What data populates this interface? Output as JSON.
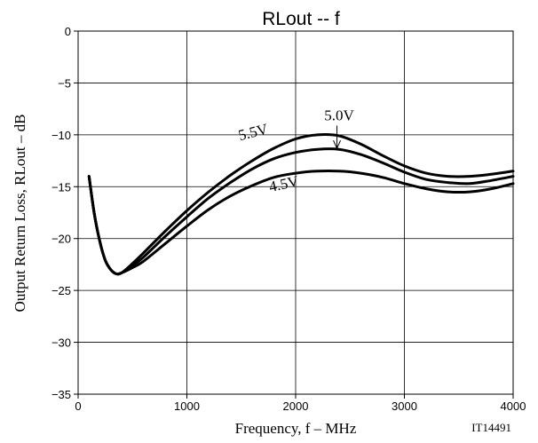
{
  "chart_data": {
    "type": "line",
    "title": "RLout  --  f",
    "xlabel": "Frequency, f  –  MHz",
    "ylabel": "Output Return Loss, RLout   –  dB",
    "xlim": [
      0,
      4000
    ],
    "ylim": [
      -35,
      0
    ],
    "xticks": [
      0,
      1000,
      2000,
      3000,
      4000
    ],
    "xtick_labels": [
      "0",
      "1000",
      "2000",
      "3000",
      "4000"
    ],
    "yticks": [
      0,
      -5,
      -10,
      -15,
      -20,
      -25,
      -30,
      -35
    ],
    "ytick_labels": [
      "0",
      "−5",
      "−10",
      "−15",
      "−20",
      "−25",
      "−30",
      "−35"
    ],
    "grid": true,
    "figure_id": "IT14491",
    "series": [
      {
        "name": "5.5V",
        "x": [
          100,
          150,
          200,
          250,
          300,
          350,
          400,
          500,
          600,
          800,
          1000,
          1200,
          1400,
          1600,
          1800,
          2000,
          2200,
          2400,
          2600,
          2800,
          3000,
          3200,
          3400,
          3600,
          3800,
          4000
        ],
        "y": [
          -14.0,
          -17.7,
          -20.3,
          -22.1,
          -23.0,
          -23.4,
          -23.3,
          -22.4,
          -21.4,
          -19.3,
          -17.3,
          -15.5,
          -13.9,
          -12.5,
          -11.3,
          -10.4,
          -10.0,
          -10.1,
          -10.9,
          -12.0,
          -13.0,
          -13.7,
          -14.0,
          -14.0,
          -13.8,
          -13.5
        ]
      },
      {
        "name": "5.0V",
        "x": [
          100,
          150,
          200,
          250,
          300,
          350,
          400,
          500,
          600,
          800,
          1000,
          1200,
          1400,
          1600,
          1800,
          2000,
          2200,
          2400,
          2600,
          2800,
          3000,
          3200,
          3400,
          3600,
          3800,
          4000
        ],
        "y": [
          -14.0,
          -17.7,
          -20.3,
          -22.1,
          -23.0,
          -23.4,
          -23.3,
          -22.6,
          -21.8,
          -19.8,
          -17.9,
          -16.1,
          -14.6,
          -13.3,
          -12.3,
          -11.7,
          -11.4,
          -11.4,
          -11.9,
          -12.7,
          -13.6,
          -14.3,
          -14.6,
          -14.7,
          -14.4,
          -14.0
        ]
      },
      {
        "name": "4.5V",
        "x": [
          100,
          150,
          200,
          250,
          300,
          350,
          400,
          500,
          600,
          800,
          1000,
          1200,
          1400,
          1600,
          1800,
          2000,
          2200,
          2400,
          2600,
          2800,
          3000,
          3200,
          3400,
          3600,
          3800,
          4000
        ],
        "y": [
          -14.0,
          -17.7,
          -20.3,
          -22.1,
          -23.0,
          -23.4,
          -23.3,
          -22.8,
          -22.2,
          -20.5,
          -18.8,
          -17.2,
          -15.9,
          -14.9,
          -14.1,
          -13.7,
          -13.5,
          -13.5,
          -13.7,
          -14.1,
          -14.7,
          -15.2,
          -15.5,
          -15.5,
          -15.2,
          -14.7
        ]
      }
    ],
    "annotations": [
      {
        "text": "5.5V",
        "series": "5.5V",
        "rotation": -14,
        "has_arrow": false
      },
      {
        "text": "5.0V",
        "series": "5.0V",
        "has_arrow": true
      },
      {
        "text": "4.5V",
        "series": "4.5V",
        "rotation": -12,
        "has_arrow": false
      }
    ]
  }
}
